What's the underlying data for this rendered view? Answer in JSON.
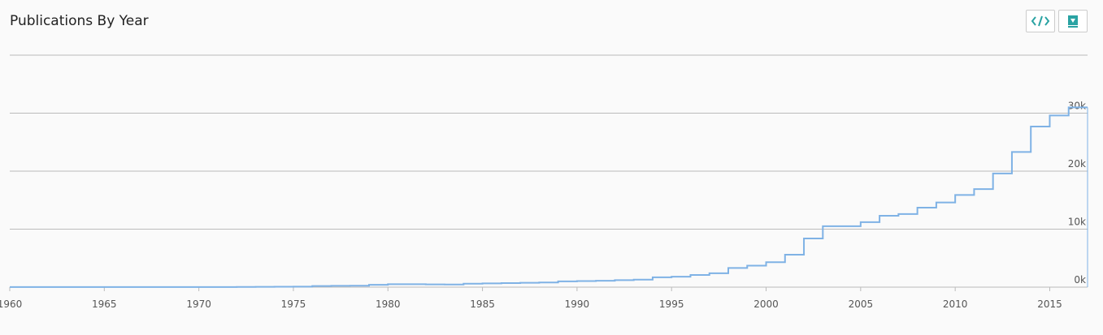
{
  "chart_data": {
    "type": "step",
    "title": "Publications By Year",
    "x": [
      1960,
      1961,
      1962,
      1963,
      1964,
      1965,
      1966,
      1967,
      1968,
      1969,
      1970,
      1971,
      1972,
      1973,
      1974,
      1975,
      1976,
      1977,
      1978,
      1979,
      1980,
      1981,
      1982,
      1983,
      1984,
      1985,
      1986,
      1987,
      1988,
      1989,
      1990,
      1991,
      1992,
      1993,
      1994,
      1995,
      1996,
      1997,
      1998,
      1999,
      2000,
      2001,
      2002,
      2003,
      2004,
      2005,
      2006,
      2007,
      2008,
      2009,
      2010,
      2011,
      2012,
      2013,
      2014,
      2015,
      2016
    ],
    "values": [
      10,
      10,
      10,
      10,
      10,
      10,
      10,
      10,
      10,
      10,
      20,
      20,
      30,
      60,
      70,
      80,
      200,
      220,
      250,
      400,
      500,
      500,
      480,
      450,
      600,
      650,
      700,
      750,
      800,
      1000,
      1050,
      1100,
      1200,
      1300,
      1700,
      1800,
      2100,
      2400,
      3300,
      3700,
      4300,
      5600,
      8400,
      10500,
      10500,
      11200,
      12300,
      12600,
      13700,
      14600,
      15900,
      16900,
      19600,
      23300,
      27700,
      29600,
      31000
    ],
    "color": "#7fb2e5",
    "xlim": [
      1960,
      2017
    ],
    "xticks": [
      1960,
      1965,
      1970,
      1975,
      1980,
      1985,
      1990,
      1995,
      2000,
      2005,
      2010,
      2015
    ],
    "ylim": [
      0,
      40000
    ],
    "yticks": [
      {
        "value": 0,
        "label": "0k"
      },
      {
        "value": 10000,
        "label": "10k"
      },
      {
        "value": 20000,
        "label": "20k"
      },
      {
        "value": 30000,
        "label": "30k"
      },
      40000
    ],
    "grid": true
  }
}
